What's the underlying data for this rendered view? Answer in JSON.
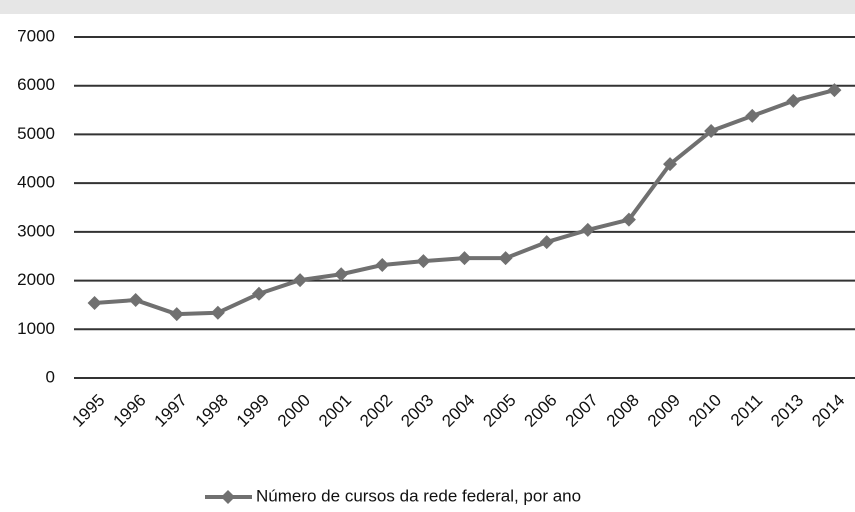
{
  "chart_data": {
    "type": "line",
    "categories": [
      "1995",
      "1996",
      "1997",
      "1998",
      "1999",
      "2000",
      "2001",
      "2002",
      "2003",
      "2004",
      "2005",
      "2006",
      "2007",
      "2008",
      "2009",
      "2010",
      "2011",
      "2013",
      "2014"
    ],
    "series": [
      {
        "name": "Número de cursos da rede federal, por ano",
        "color": "#707070",
        "values": [
          1540,
          1600,
          1310,
          1340,
          1730,
          2010,
          2130,
          2320,
          2400,
          2460,
          2460,
          2790,
          3040,
          3250,
          4390,
          5070,
          5380,
          5690,
          5910
        ]
      }
    ],
    "ylim": [
      0,
      7000
    ],
    "yticks": [
      0,
      1000,
      2000,
      3000,
      4000,
      5000,
      6000,
      7000
    ],
    "grid": true,
    "legend": "bottom"
  }
}
